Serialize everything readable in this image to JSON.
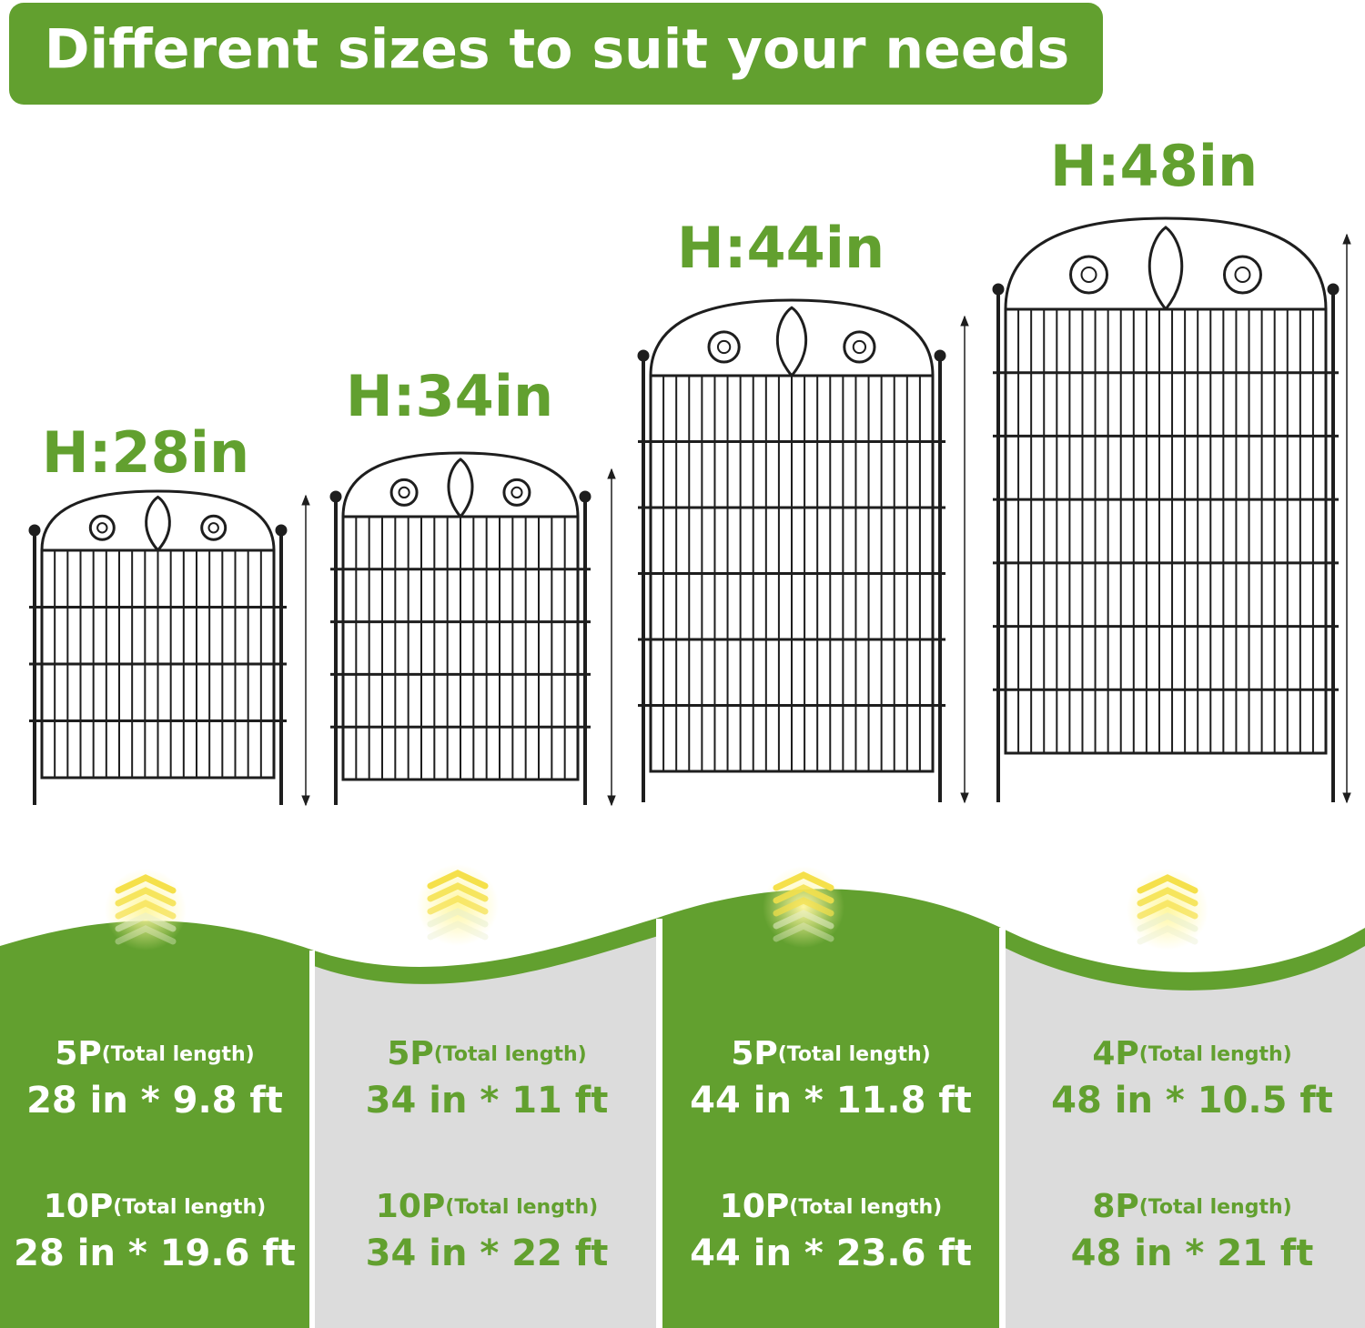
{
  "title": "Different sizes to suit your needs",
  "fences": [
    {
      "height": "H:28in"
    },
    {
      "height": "H:34in"
    },
    {
      "height": "H:44in"
    },
    {
      "height": "H:48in"
    }
  ],
  "columns": [
    {
      "rows": [
        {
          "pack": "5P",
          "note": "(Total length)",
          "size": "28 in * 9.8 ft"
        },
        {
          "pack": "10P",
          "note": "(Total length)",
          "size": "28 in * 19.6 ft"
        }
      ]
    },
    {
      "rows": [
        {
          "pack": "5P",
          "note": "(Total length)",
          "size": "34 in * 11 ft"
        },
        {
          "pack": "10P",
          "note": "(Total length)",
          "size": "34 in * 22 ft"
        }
      ]
    },
    {
      "rows": [
        {
          "pack": "5P",
          "note": "(Total length)",
          "size": "44 in * 11.8 ft"
        },
        {
          "pack": "10P",
          "note": "(Total length)",
          "size": "44 in * 23.6 ft"
        }
      ]
    },
    {
      "rows": [
        {
          "pack": "4P",
          "note": "(Total length)",
          "size": "48 in * 10.5 ft"
        },
        {
          "pack": "8P",
          "note": "(Total length)",
          "size": "48 in * 21 ft"
        }
      ]
    }
  ]
}
